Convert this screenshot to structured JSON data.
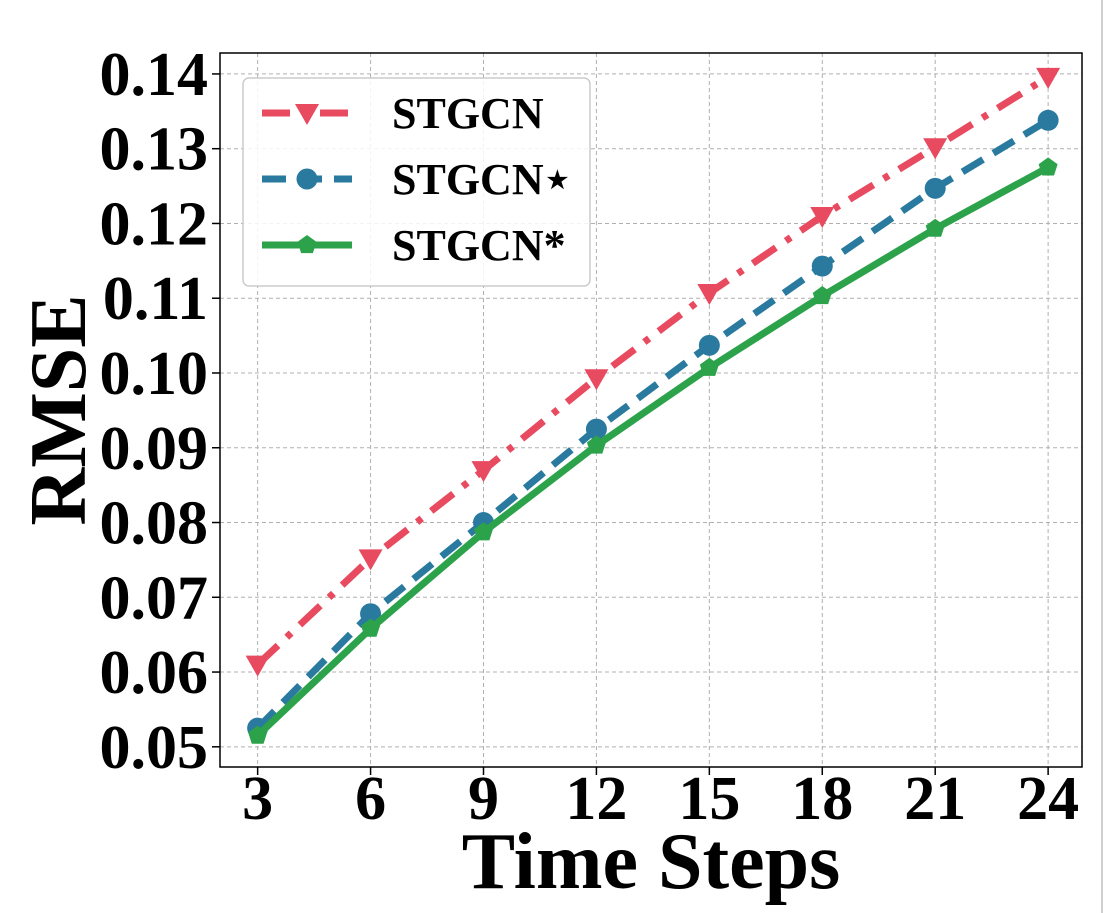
{
  "chart_data": {
    "type": "line",
    "xlabel": "Time Steps",
    "ylabel": "RMSE",
    "x": [
      3,
      6,
      9,
      12,
      15,
      18,
      21,
      24
    ],
    "xticks": [
      "3",
      "6",
      "9",
      "12",
      "15",
      "18",
      "21",
      "24"
    ],
    "yticks": [
      "0.05",
      "0.06",
      "0.07",
      "0.08",
      "0.09",
      "0.10",
      "0.11",
      "0.12",
      "0.13",
      "0.14"
    ],
    "xlim": [
      2.0,
      24.9
    ],
    "ylim": [
      0.0473,
      0.1428
    ],
    "grid": true,
    "legend_position": "top-left",
    "series": [
      {
        "name": "STGCN",
        "color": "#e84a5f",
        "line_style": "dash-dot",
        "marker": "triangle-down",
        "values": [
          0.061,
          0.0752,
          0.087,
          0.0993,
          0.1107,
          0.121,
          0.1302,
          0.1396
        ]
      },
      {
        "name": "STGCN⋆",
        "color": "#2a7aa0",
        "line_style": "dashed",
        "marker": "circle",
        "values": [
          0.0525,
          0.0678,
          0.08,
          0.0925,
          0.1037,
          0.1143,
          0.1247,
          0.1338
        ]
      },
      {
        "name": "STGCN*",
        "color": "#2ca34a",
        "line_style": "solid",
        "marker": "pentagon",
        "values": [
          0.0515,
          0.0658,
          0.0787,
          0.0903,
          0.1007,
          0.1103,
          0.1193,
          0.1275
        ]
      }
    ]
  }
}
